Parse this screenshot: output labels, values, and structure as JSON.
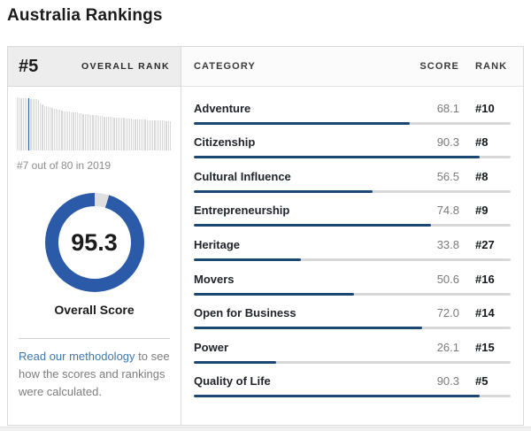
{
  "page": {
    "title": "Australia Rankings"
  },
  "colors": {
    "navy_bar": "#1b4872",
    "donut_blue": "#2b5ba8",
    "donut_gap": "#dfdfdf",
    "spark_gray": "#d9d9d9",
    "spark_highlight": "#1d5a9e",
    "link_blue": "#4077b0"
  },
  "overall": {
    "rank_value": "#5",
    "rank_label": "OVERALL RANK",
    "spark_caption": "#7 out of 80 in 2019",
    "score_display": "95.3",
    "score_value": 95.3,
    "score_max": 100,
    "score_label": "Overall Score"
  },
  "methodology": {
    "link_text": "Read our methodology",
    "rest_text": " to see how the scores and rankings were calculated."
  },
  "table": {
    "headers": {
      "category": "CATEGORY",
      "score": "SCORE",
      "rank": "RANK"
    },
    "rows": [
      {
        "category": "Adventure",
        "score": "68.1",
        "rank": "#10",
        "value": 68.1
      },
      {
        "category": "Citizenship",
        "score": "90.3",
        "rank": "#8",
        "value": 90.3
      },
      {
        "category": "Cultural Influence",
        "score": "56.5",
        "rank": "#8",
        "value": 56.5
      },
      {
        "category": "Entrepreneurship",
        "score": "74.8",
        "rank": "#9",
        "value": 74.8
      },
      {
        "category": "Heritage",
        "score": "33.8",
        "rank": "#27",
        "value": 33.8
      },
      {
        "category": "Movers",
        "score": "50.6",
        "rank": "#16",
        "value": 50.6
      },
      {
        "category": "Open for Business",
        "score": "72.0",
        "rank": "#14",
        "value": 72.0
      },
      {
        "category": "Power",
        "score": "26.1",
        "rank": "#15",
        "value": 26.1
      },
      {
        "category": "Quality of Life",
        "score": "90.3",
        "rank": "#5",
        "value": 90.3
      }
    ]
  },
  "sparkline": {
    "highlight_index": 6,
    "values": [
      100,
      100,
      99,
      99,
      98,
      98,
      98,
      97,
      97,
      96,
      96,
      95,
      88,
      86,
      84,
      83,
      82,
      81,
      80,
      79,
      78,
      77,
      76,
      75,
      74,
      74,
      73,
      73,
      72,
      72,
      71,
      71,
      70,
      70,
      69,
      69,
      68,
      68,
      67,
      67,
      66,
      66,
      65,
      65,
      65,
      64,
      64,
      63,
      63,
      63,
      62,
      62,
      62,
      61,
      61,
      61,
      60,
      60,
      60,
      60,
      59,
      59,
      59,
      58,
      58,
      58,
      58,
      57,
      57,
      57,
      57,
      57,
      56,
      56,
      56,
      56,
      56,
      55,
      55,
      55
    ]
  },
  "chart_data": [
    {
      "type": "bar",
      "title": "Australia category scores",
      "orientation": "horizontal",
      "categories": [
        "Adventure",
        "Citizenship",
        "Cultural Influence",
        "Entrepreneurship",
        "Heritage",
        "Movers",
        "Open for Business",
        "Power",
        "Quality of Life"
      ],
      "values": [
        68.1,
        90.3,
        56.5,
        74.8,
        33.8,
        50.6,
        72.0,
        26.1,
        90.3
      ],
      "ranks": [
        "#10",
        "#8",
        "#8",
        "#9",
        "#27",
        "#16",
        "#14",
        "#15",
        "#5"
      ],
      "xlabel": "Score",
      "ylabel": "Category",
      "xlim": [
        0,
        100
      ],
      "grid": false,
      "legend": "none"
    },
    {
      "type": "pie",
      "subtype": "donut",
      "title": "Overall Score",
      "labels": [
        "Overall Score",
        "Remainder"
      ],
      "values": [
        95.3,
        4.7
      ],
      "center_label": "95.3",
      "annotation": "#5 Overall Rank"
    },
    {
      "type": "bar",
      "title": "Overall score distribution across 80 countries (rank order)",
      "categories_note": "80 countries, unlabeled",
      "values": [
        100,
        100,
        99,
        99,
        98,
        98,
        98,
        97,
        97,
        96,
        96,
        95,
        88,
        86,
        84,
        83,
        82,
        81,
        80,
        79,
        78,
        77,
        76,
        75,
        74,
        74,
        73,
        73,
        72,
        72,
        71,
        71,
        70,
        70,
        69,
        69,
        68,
        68,
        67,
        67,
        66,
        66,
        65,
        65,
        65,
        64,
        64,
        63,
        63,
        63,
        62,
        62,
        62,
        61,
        61,
        61,
        60,
        60,
        60,
        60,
        59,
        59,
        59,
        58,
        58,
        58,
        58,
        57,
        57,
        57,
        57,
        57,
        56,
        56,
        56,
        56,
        56,
        55,
        55,
        55
      ],
      "highlight_index": 6,
      "annotation": "#7 out of 80 in 2019",
      "grid": false,
      "legend": "none"
    }
  ]
}
